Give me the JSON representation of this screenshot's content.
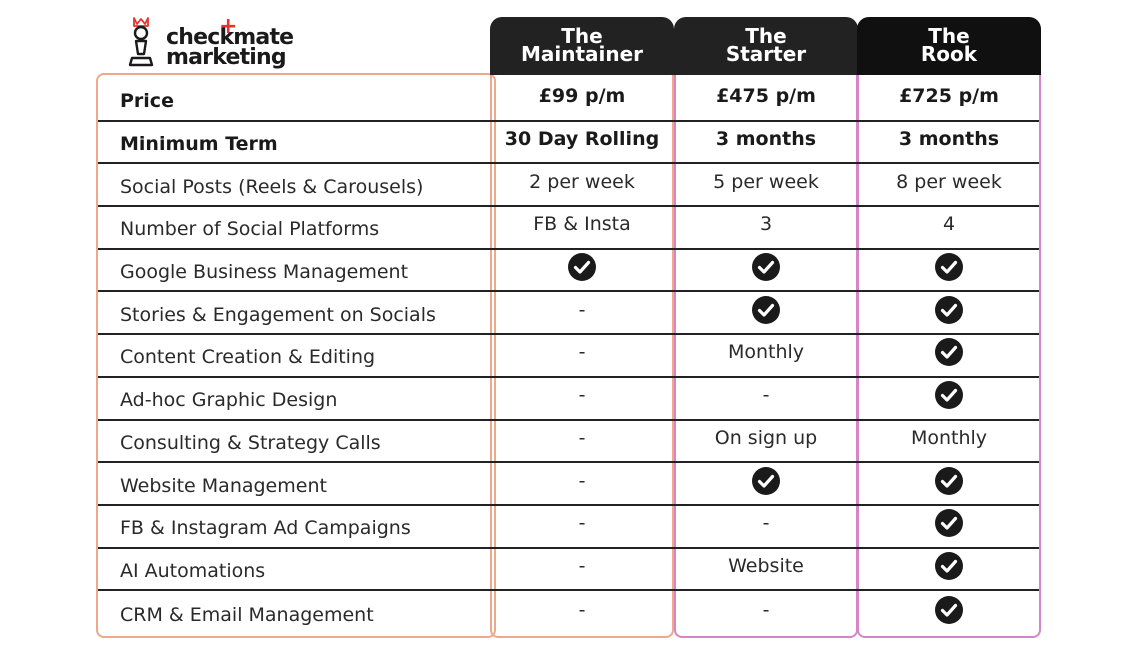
{
  "logo": {
    "line1": "checkmate",
    "line2": "marketing",
    "icon": "chess-pawn-icon",
    "accent_color": "#e8322d"
  },
  "plans": [
    {
      "line1": "The",
      "line2": "Maintainer"
    },
    {
      "line1": "The",
      "line2": "Starter"
    },
    {
      "line1": "The",
      "line2": "Rook"
    }
  ],
  "colors": {
    "features_border": "#f0a88a",
    "starter_rook_border": "#d586c8",
    "header_bg": "#222222"
  },
  "rows": [
    {
      "label": "Price",
      "bold": true,
      "values": [
        "£99 p/m",
        "£475 p/m",
        "£725 p/m"
      ]
    },
    {
      "label": "Minimum Term",
      "bold": true,
      "values": [
        "30 Day Rolling",
        "3 months",
        "3 months"
      ]
    },
    {
      "label": "Social Posts (Reels & Carousels)",
      "values": [
        "2 per week",
        "5 per week",
        "8 per week"
      ]
    },
    {
      "label": "Number of Social Platforms",
      "values": [
        "FB & Insta",
        "3",
        "4"
      ]
    },
    {
      "label": "Google Business Management",
      "values": [
        "check",
        "check",
        "check"
      ]
    },
    {
      "label": "Stories & Engagement on Socials",
      "values": [
        "-",
        "check",
        "check"
      ]
    },
    {
      "label": "Content Creation & Editing",
      "values": [
        "-",
        "Monthly",
        "check"
      ]
    },
    {
      "label": "Ad-hoc Graphic Design",
      "values": [
        "-",
        "-",
        "check"
      ]
    },
    {
      "label": "Consulting & Strategy Calls",
      "values": [
        "-",
        "On sign up",
        "Monthly"
      ]
    },
    {
      "label": "Website Management",
      "values": [
        "-",
        "check",
        "check"
      ]
    },
    {
      "label": "FB & Instagram Ad Campaigns",
      "values": [
        "-",
        "-",
        "check"
      ]
    },
    {
      "label": "AI Automations",
      "values": [
        "-",
        "Website",
        "check"
      ]
    },
    {
      "label": "CRM & Email Management",
      "values": [
        "-",
        "-",
        "check"
      ]
    }
  ]
}
